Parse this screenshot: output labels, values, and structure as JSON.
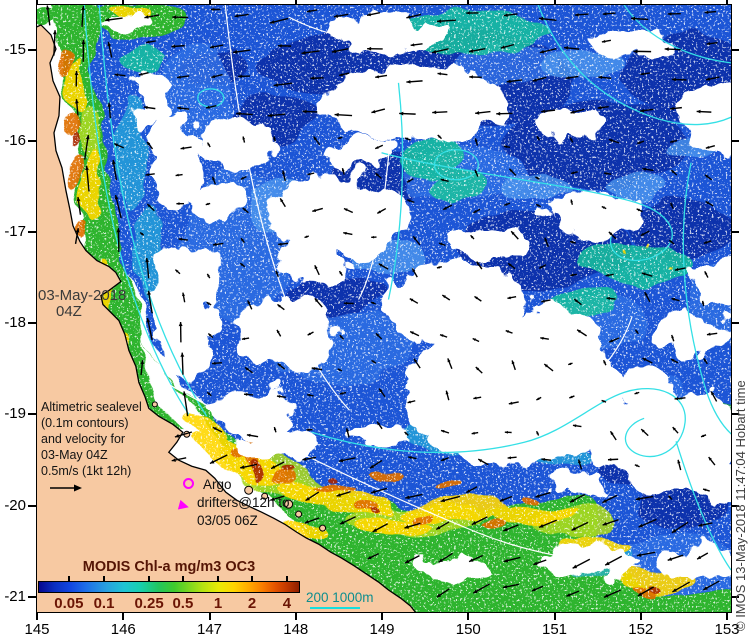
{
  "map": {
    "date_annotation": {
      "line1": "03-May-2018",
      "line2": "04Z"
    },
    "altimetric_annotation": {
      "lines": [
        "Altimetric sealevel",
        "(0.1m contours)",
        "and velocity for",
        "03-May 04Z",
        "0.5m/s (1kt 12h)"
      ]
    },
    "argo_annotation": {
      "lines": [
        "Argo",
        "drifters@12h to",
        "03/05 06Z"
      ]
    },
    "credit": "© IMOS 13-May-2018 11:47:04 Hobart time",
    "scalebar": {
      "label": "200 1000m"
    },
    "axes": {
      "lon_ticks": [
        "145",
        "146",
        "147",
        "148",
        "149",
        "150",
        "151",
        "152",
        "153"
      ],
      "lat_ticks": [
        "-15",
        "-16",
        "-17",
        "-18",
        "-19",
        "-20",
        "-21"
      ]
    },
    "legend": {
      "title": "MODIS Chl-a mg/m3 OC3",
      "ticks": [
        {
          "label": "0.05",
          "pct": 11.8
        },
        {
          "label": "0.1",
          "pct": 25.2
        },
        {
          "label": "0.25",
          "pct": 42.4
        },
        {
          "label": "0.5",
          "pct": 55.3
        },
        {
          "label": "1",
          "pct": 68.7
        },
        {
          "label": "2",
          "pct": 81.7
        },
        {
          "label": "4",
          "pct": 95.0
        }
      ]
    },
    "colors": {
      "land": "#f7c9a2",
      "cloud": "#ffffff",
      "deep_blue": "#0a2da8",
      "mid_blue": "#1e55d6",
      "shelf_green": "#2eb42e",
      "chl_yellow": "#ffd800",
      "chl_orange": "#ff8c00",
      "contour_cyan": "#35e0e6",
      "annotation_magenta": "#ff00ff",
      "legend_text": "#6b1505",
      "scalebar_text": "#0e8e8e"
    }
  }
}
